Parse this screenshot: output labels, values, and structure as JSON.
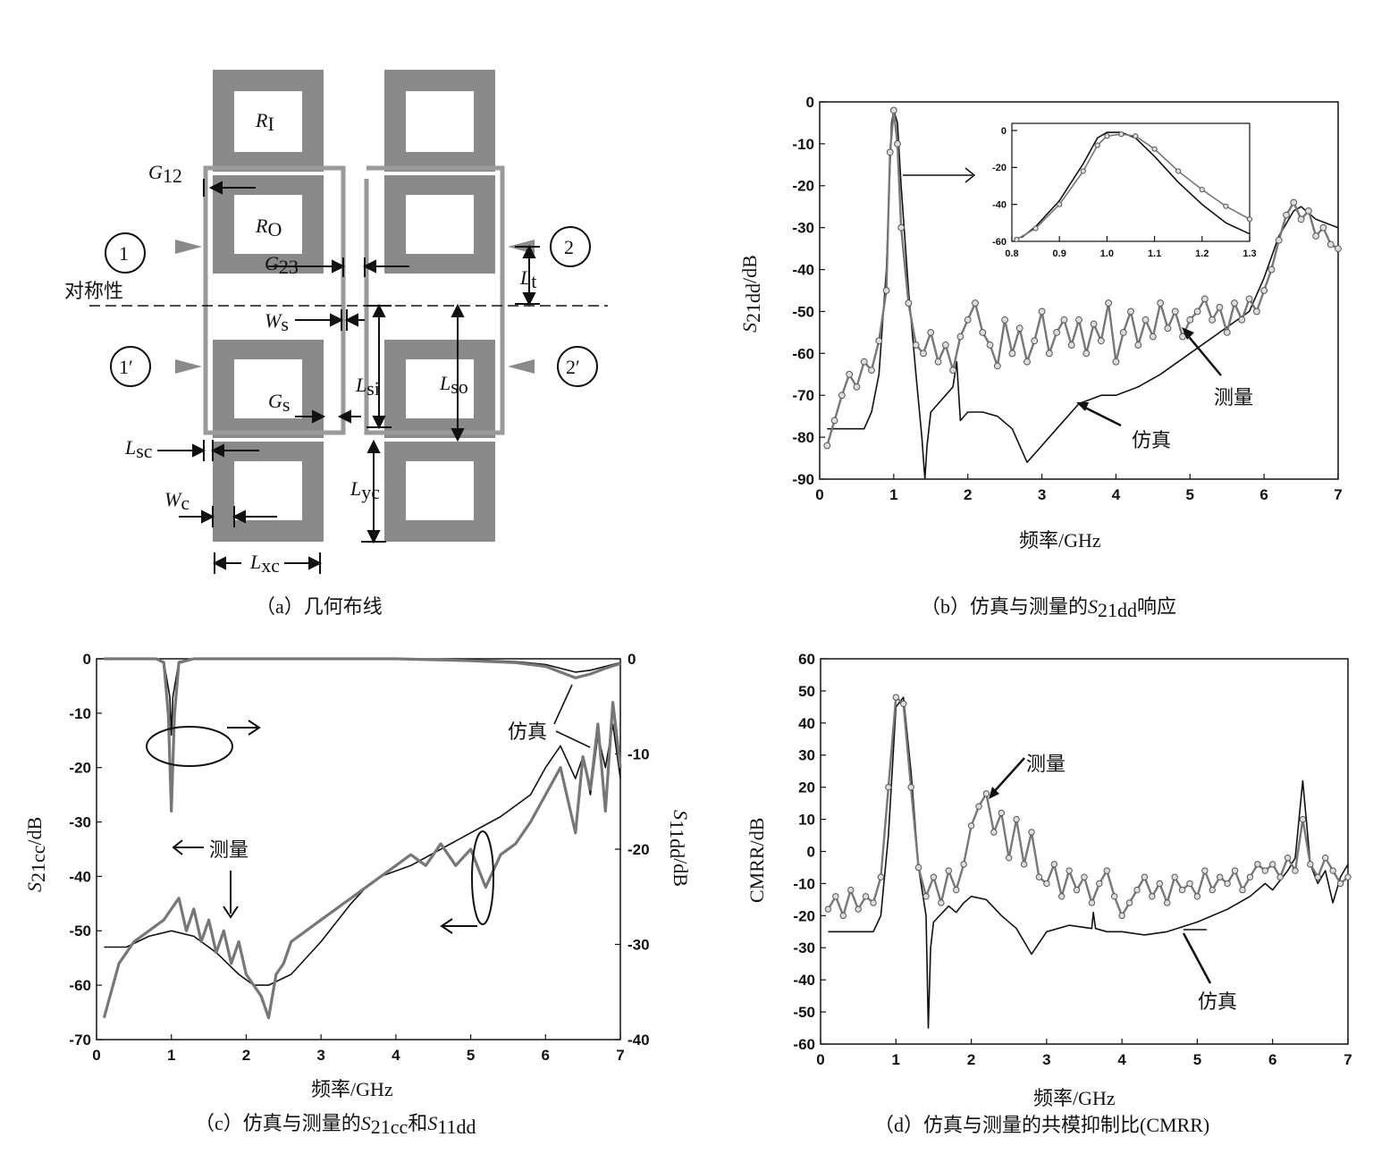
{
  "panel_a": {
    "caption": "（a）几何布线",
    "symmetry_label": "对称性",
    "ports": [
      "1",
      "2",
      "1′",
      "2′"
    ],
    "labels": {
      "R1": "R",
      "R1_sub": "I",
      "RO": "R",
      "RO_sub": "O",
      "G12": "G",
      "G12_sub": "12",
      "G23": "G",
      "G23_sub": "23",
      "Lt": "L",
      "Lt_sub": "t",
      "Ws": "W",
      "Ws_sub": "s",
      "Lsi": "L",
      "Lsi_sub": "si",
      "Lso": "L",
      "Lso_sub": "so",
      "Gs": "G",
      "Gs_sub": "s",
      "Lsc": "L",
      "Lsc_sub": "sc",
      "Lyc": "L",
      "Lyc_sub": "yc",
      "Wc": "W",
      "Wc_sub": "c",
      "Lxc": "L",
      "Lxc_sub": "xc"
    }
  },
  "chart_data": [
    {
      "id": "b",
      "type": "line",
      "caption_prefix": "（b）仿真与测量的",
      "caption_sym": "S",
      "caption_sub": "21dd",
      "caption_suffix": "响应",
      "xlabel": "频率/GHz",
      "ylabel_sym": "S",
      "ylabel_sub": "21dd",
      "ylabel_unit": "/dB",
      "xlim": [
        0,
        7
      ],
      "ylim": [
        -90,
        0
      ],
      "xticks": [
        "0",
        "1",
        "2",
        "3",
        "4",
        "5",
        "6",
        "7"
      ],
      "yticks": [
        "0",
        "-10",
        "-20",
        "-30",
        "-40",
        "-50",
        "-60",
        "-70",
        "-80",
        "-90"
      ],
      "annotations": [
        "测量",
        "仿真"
      ],
      "series": [
        {
          "role": "sim",
          "x": [
            0.1,
            0.3,
            0.6,
            0.7,
            0.8,
            0.9,
            0.97,
            1.0,
            1.05,
            1.1,
            1.2,
            1.3,
            1.38,
            1.42,
            1.45,
            1.5,
            1.6,
            1.8,
            1.85,
            1.9,
            2.0,
            2.2,
            2.4,
            2.6,
            2.8,
            3.0,
            3.2,
            3.5,
            3.8,
            4.0,
            4.3,
            4.6,
            5.0,
            5.4,
            5.8,
            6.0,
            6.2,
            6.4,
            6.5,
            6.7,
            7.0
          ],
          "y": [
            -78,
            -78,
            -78,
            -74,
            -65,
            -40,
            -5,
            -2,
            -5,
            -20,
            -45,
            -65,
            -80,
            -90,
            -82,
            -74,
            -72,
            -68,
            -62,
            -76,
            -74,
            -74,
            -75,
            -78,
            -86,
            -82,
            -78,
            -72,
            -70,
            -70,
            -68,
            -65,
            -60,
            -55,
            -50,
            -42,
            -32,
            -26,
            -25,
            -28,
            -30
          ]
        },
        {
          "role": "meas",
          "x": [
            0.1,
            0.2,
            0.3,
            0.4,
            0.5,
            0.6,
            0.7,
            0.8,
            0.9,
            0.95,
            1.0,
            1.05,
            1.1,
            1.2,
            1.3,
            1.4,
            1.5,
            1.6,
            1.7,
            1.8,
            1.9,
            2.0,
            2.1,
            2.2,
            2.3,
            2.4,
            2.5,
            2.6,
            2.7,
            2.8,
            2.9,
            3.0,
            3.1,
            3.2,
            3.3,
            3.4,
            3.5,
            3.6,
            3.7,
            3.8,
            3.9,
            4.0,
            4.1,
            4.2,
            4.3,
            4.4,
            4.5,
            4.6,
            4.7,
            4.8,
            4.9,
            5.0,
            5.1,
            5.2,
            5.3,
            5.4,
            5.5,
            5.6,
            5.7,
            5.8,
            5.9,
            6.0,
            6.1,
            6.2,
            6.3,
            6.4,
            6.5,
            6.6,
            6.7,
            6.8,
            6.9,
            7.0
          ],
          "y": [
            -82,
            -76,
            -70,
            -65,
            -68,
            -62,
            -64,
            -57,
            -45,
            -12,
            -2,
            -10,
            -30,
            -48,
            -58,
            -60,
            -55,
            -62,
            -58,
            -64,
            -56,
            -52,
            -48,
            -55,
            -58,
            -63,
            -52,
            -60,
            -54,
            -62,
            -57,
            -50,
            -60,
            -55,
            -52,
            -58,
            -52,
            -60,
            -53,
            -57,
            -48,
            -62,
            -55,
            -50,
            -58,
            -52,
            -56,
            -48,
            -54,
            -50,
            -56,
            -52,
            -50,
            -47,
            -52,
            -49,
            -55,
            -48,
            -52,
            -47,
            -50,
            -45,
            -40,
            -33,
            -27,
            -24,
            -28,
            -26,
            -32,
            -30,
            -34,
            -35
          ]
        }
      ],
      "inset": {
        "xlim": [
          0.8,
          1.3
        ],
        "ylim": [
          -60,
          0
        ],
        "xticks": [
          "0.8",
          "0.9",
          "1.0",
          "1.1",
          "1.2",
          "1.3"
        ],
        "yticks": [
          "0",
          "-20",
          "-40",
          "-60"
        ],
        "series": [
          {
            "role": "sim",
            "x": [
              0.82,
              0.85,
              0.9,
              0.95,
              0.98,
              1.0,
              1.03,
              1.06,
              1.1,
              1.15,
              1.2,
              1.25,
              1.3
            ],
            "y": [
              -58,
              -52,
              -38,
              -18,
              -4,
              -1,
              -1,
              -4,
              -14,
              -28,
              -40,
              -50,
              -56
            ]
          },
          {
            "role": "meas",
            "x": [
              0.81,
              0.85,
              0.9,
              0.95,
              0.98,
              1.0,
              1.03,
              1.06,
              1.1,
              1.15,
              1.2,
              1.25,
              1.3
            ],
            "y": [
              -59,
              -53,
              -40,
              -22,
              -8,
              -3,
              -2,
              -3,
              -10,
              -22,
              -32,
              -41,
              -48
            ]
          }
        ]
      }
    },
    {
      "id": "c",
      "type": "line",
      "caption_prefix": "（c）仿真与测量的",
      "caption_sym1": "S",
      "caption_sub1": "21cc",
      "caption_mid": "和",
      "caption_sym2": "S",
      "caption_sub2": "11dd",
      "xlabel": "频率/GHz",
      "ylabel_sym": "S",
      "ylabel_sub": "21cc",
      "ylabel_unit": "/dB",
      "y2label_sym": "S",
      "y2label_sub": "11dd",
      "y2label_unit": "/dB",
      "xlim": [
        0,
        7
      ],
      "ylim": [
        -70,
        0
      ],
      "y2lim": [
        -40,
        0
      ],
      "xticks": [
        "0",
        "1",
        "2",
        "3",
        "4",
        "5",
        "6",
        "7"
      ],
      "yticks": [
        "0",
        "-10",
        "-20",
        "-30",
        "-40",
        "-50",
        "-60",
        "-70"
      ],
      "y2ticks": [
        "0",
        "-10",
        "-20",
        "-30",
        "-40"
      ],
      "annotations": [
        "仿真",
        "测量"
      ],
      "series": [
        {
          "role": "sim_s21cc",
          "x": [
            0.1,
            0.4,
            0.7,
            1.0,
            1.3,
            1.6,
            1.9,
            2.1,
            2.3,
            2.6,
            3.0,
            3.4,
            3.6,
            3.8,
            4.2,
            4.6,
            5.0,
            5.4,
            5.8,
            6.0,
            6.2,
            6.4,
            6.5,
            6.6,
            6.7,
            6.8,
            6.9,
            7.0
          ],
          "y": [
            -53,
            -53,
            -51,
            -50,
            -51,
            -54,
            -58,
            -60,
            -60,
            -58,
            -52,
            -45,
            -42,
            -40,
            -38,
            -35,
            -32,
            -29,
            -25,
            -20,
            -16,
            -22,
            -18,
            -25,
            -14,
            -20,
            -12,
            -22
          ]
        },
        {
          "role": "meas_s21cc",
          "x": [
            0.1,
            0.3,
            0.5,
            0.7,
            0.9,
            1.0,
            1.1,
            1.2,
            1.3,
            1.4,
            1.5,
            1.6,
            1.7,
            1.8,
            1.9,
            2.0,
            2.1,
            2.2,
            2.3,
            2.4,
            2.5,
            2.6,
            2.8,
            3.0,
            3.2,
            3.4,
            3.6,
            3.8,
            4.0,
            4.2,
            4.4,
            4.6,
            4.8,
            5.0,
            5.2,
            5.4,
            5.6,
            5.8,
            6.0,
            6.2,
            6.3,
            6.4,
            6.5,
            6.6,
            6.7,
            6.8,
            6.9,
            7.0
          ],
          "y": [
            -66,
            -56,
            -52,
            -50,
            -48,
            -46,
            -44,
            -50,
            -46,
            -52,
            -48,
            -54,
            -50,
            -56,
            -52,
            -58,
            -60,
            -62,
            -66,
            -58,
            -56,
            -52,
            -50,
            -48,
            -46,
            -44,
            -42,
            -40,
            -38,
            -36,
            -38,
            -34,
            -38,
            -35,
            -42,
            -36,
            -34,
            -30,
            -25,
            -20,
            -26,
            -32,
            -18,
            -24,
            -12,
            -28,
            -8,
            -20
          ]
        },
        {
          "role": "sim_s11dd",
          "axis": "y2",
          "x": [
            0.1,
            0.8,
            0.9,
            0.98,
            1.0,
            1.02,
            1.1,
            1.3,
            2.0,
            3.0,
            4.0,
            5.0,
            5.6,
            6.0,
            6.2,
            6.4,
            6.6,
            6.8,
            7.0
          ],
          "y": [
            0,
            0,
            -0.3,
            -4,
            -8,
            -4,
            -0.3,
            0,
            0,
            0,
            0,
            -0.1,
            -0.3,
            -0.6,
            -1.0,
            -1.4,
            -1.2,
            -0.8,
            -0.4
          ]
        },
        {
          "role": "meas_s11dd",
          "axis": "y2",
          "x": [
            0.1,
            0.8,
            0.9,
            0.96,
            1.0,
            1.04,
            1.1,
            1.3,
            2.0,
            3.0,
            4.0,
            5.0,
            5.6,
            6.0,
            6.2,
            6.4,
            6.6,
            6.8,
            7.0
          ],
          "y": [
            0,
            0,
            -0.4,
            -6,
            -16,
            -6,
            -0.4,
            0,
            0,
            0,
            0,
            -0.2,
            -0.4,
            -0.8,
            -1.4,
            -2.0,
            -1.6,
            -1.0,
            -0.5
          ]
        }
      ]
    },
    {
      "id": "d",
      "type": "line",
      "caption": "（d）仿真与测量的共模抑制比(CMRR)",
      "xlabel": "频率/GHz",
      "ylabel": "CMRR/dB",
      "xlim": [
        0,
        7
      ],
      "ylim": [
        -60,
        60
      ],
      "xticks": [
        "0",
        "1",
        "2",
        "3",
        "4",
        "5",
        "6",
        "7"
      ],
      "yticks": [
        "60",
        "50",
        "40",
        "30",
        "20",
        "10",
        "0",
        "-10",
        "-20",
        "-30",
        "-40",
        "-50",
        "-60"
      ],
      "annotations": [
        "测量",
        "仿真"
      ],
      "series": [
        {
          "role": "sim",
          "x": [
            0.1,
            0.7,
            0.8,
            0.9,
            1.0,
            1.1,
            1.2,
            1.3,
            1.4,
            1.43,
            1.46,
            1.5,
            1.7,
            1.8,
            1.9,
            2.0,
            2.2,
            2.4,
            2.6,
            2.8,
            3.0,
            3.3,
            3.6,
            3.62,
            3.65,
            3.8,
            4.0,
            4.3,
            4.6,
            5.0,
            5.4,
            5.7,
            5.9,
            6.0,
            6.2,
            6.3,
            6.4,
            6.5,
            6.6,
            6.7,
            6.8,
            6.9,
            7.0
          ],
          "y": [
            -25,
            -25,
            -20,
            5,
            45,
            48,
            25,
            -5,
            -20,
            -55,
            -30,
            -22,
            -17,
            -19,
            -16,
            -14,
            -15,
            -20,
            -24,
            -32,
            -25,
            -23,
            -24,
            -19,
            -24,
            -25,
            -25,
            -26,
            -25,
            -22,
            -18,
            -14,
            -10,
            -12,
            -6,
            -2,
            22,
            -4,
            -10,
            -6,
            -16,
            -8,
            -4
          ]
        },
        {
          "role": "meas",
          "x": [
            0.1,
            0.2,
            0.3,
            0.4,
            0.5,
            0.6,
            0.7,
            0.8,
            0.9,
            1.0,
            1.1,
            1.2,
            1.3,
            1.4,
            1.5,
            1.6,
            1.7,
            1.8,
            1.9,
            2.0,
            2.1,
            2.2,
            2.3,
            2.4,
            2.5,
            2.6,
            2.7,
            2.8,
            2.9,
            3.0,
            3.1,
            3.2,
            3.3,
            3.4,
            3.5,
            3.6,
            3.7,
            3.8,
            3.9,
            4.0,
            4.1,
            4.2,
            4.3,
            4.4,
            4.5,
            4.6,
            4.7,
            4.8,
            4.9,
            5.0,
            5.1,
            5.2,
            5.3,
            5.4,
            5.5,
            5.6,
            5.7,
            5.8,
            5.9,
            6.0,
            6.1,
            6.2,
            6.3,
            6.4,
            6.5,
            6.6,
            6.7,
            6.8,
            6.9,
            7.0
          ],
          "y": [
            -18,
            -14,
            -20,
            -12,
            -18,
            -14,
            -16,
            -8,
            20,
            48,
            46,
            20,
            -5,
            -14,
            -8,
            -16,
            -6,
            -12,
            -4,
            8,
            14,
            18,
            6,
            12,
            -2,
            10,
            -4,
            6,
            -8,
            -10,
            -4,
            -14,
            -6,
            -12,
            -8,
            -16,
            -10,
            -6,
            -14,
            -20,
            -16,
            -12,
            -8,
            -14,
            -10,
            -16,
            -8,
            -12,
            -10,
            -14,
            -6,
            -12,
            -8,
            -10,
            -6,
            -12,
            -8,
            -4,
            -6,
            -4,
            -8,
            -2,
            -6,
            10,
            -4,
            -8,
            -2,
            -6,
            -10,
            -8
          ]
        }
      ]
    }
  ]
}
